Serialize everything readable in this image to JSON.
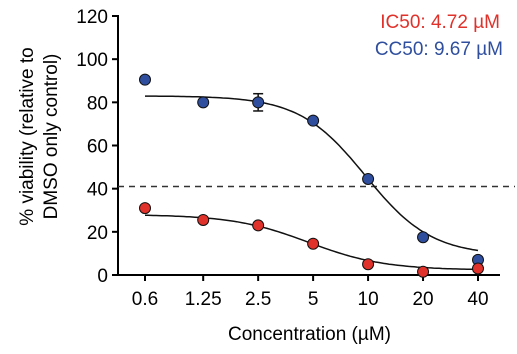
{
  "chart_data": {
    "type": "scatter",
    "xlabel": "Concentration (µM)",
    "ylabel_lines": [
      "% viability (relative to",
      "DMSO only control)"
    ],
    "x_scale": "log",
    "categories": [
      "0.6",
      "1.25",
      "2.5",
      "5",
      "10",
      "20",
      "40"
    ],
    "x": [
      0.6,
      1.25,
      2.5,
      5,
      10,
      20,
      40
    ],
    "ylim": [
      0,
      120
    ],
    "yticks": [
      0,
      20,
      40,
      60,
      80,
      100,
      120
    ],
    "grid": false,
    "reference_line": {
      "y": 41,
      "style": "dashed"
    },
    "series": [
      {
        "key": "cc50",
        "color": "#2f4f9e",
        "values": [
          90.5,
          80,
          80,
          71.5,
          44.5,
          17.5,
          7
        ],
        "error": [
          0,
          0,
          4,
          0,
          0,
          0,
          0
        ],
        "fit": {
          "top": 83,
          "bottom": 9,
          "ec50": 9.67,
          "hill": 2.4
        }
      },
      {
        "key": "ic50",
        "color": "#e0312a",
        "values": [
          31,
          25.5,
          23,
          14.5,
          5,
          1.5,
          3
        ],
        "error": [
          0,
          0,
          0,
          0,
          0,
          0,
          0
        ],
        "fit": {
          "top": 28,
          "bottom": 2.3,
          "ec50": 4.72,
          "hill": 2.1
        }
      }
    ],
    "annotations": [
      {
        "key": "ic50_label",
        "text": "IC50: 4.72 µM",
        "color": "#e0312a"
      },
      {
        "key": "cc50_label",
        "text": "CC50: 9.67 µM",
        "color": "#2f4f9e"
      }
    ]
  }
}
